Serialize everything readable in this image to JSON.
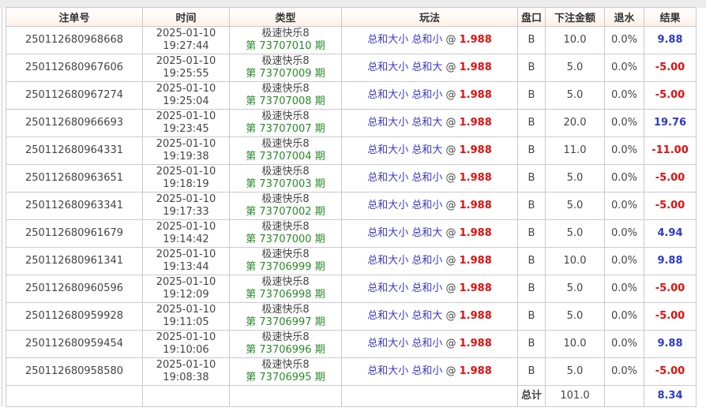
{
  "headers": [
    "注单号",
    "时间",
    "类型",
    "玩法",
    "盘口",
    "下注金额",
    "退水",
    "结果"
  ],
  "rows": [
    {
      "id": "250112680968668",
      "date": "2025-01-10",
      "time": "19:27:44",
      "game": "极速快乐8",
      "period": "第 73707010 期",
      "play": "总和大小 总和小",
      "odds": "1.988",
      "pan": "B",
      "amount": "10.0",
      "rebate": "0.0%",
      "result": "9.88"
    },
    {
      "id": "250112680967606",
      "date": "2025-01-10",
      "time": "19:25:55",
      "game": "极速快乐8",
      "period": "第 73707009 期",
      "play": "总和大小 总和大",
      "odds": "1.988",
      "pan": "B",
      "amount": "5.0",
      "rebate": "0.0%",
      "result": "-5.00"
    },
    {
      "id": "250112680967274",
      "date": "2025-01-10",
      "time": "19:25:04",
      "game": "极速快乐8",
      "period": "第 73707008 期",
      "play": "总和大小 总和小",
      "odds": "1.988",
      "pan": "B",
      "amount": "5.0",
      "rebate": "0.0%",
      "result": "-5.00"
    },
    {
      "id": "250112680966693",
      "date": "2025-01-10",
      "time": "19:23:45",
      "game": "极速快乐8",
      "period": "第 73707007 期",
      "play": "总和大小 总和大",
      "odds": "1.988",
      "pan": "B",
      "amount": "20.0",
      "rebate": "0.0%",
      "result": "19.76"
    },
    {
      "id": "250112680964331",
      "date": "2025-01-10",
      "time": "19:19:38",
      "game": "极速快乐8",
      "period": "第 73707004 期",
      "play": "总和大小 总和大",
      "odds": "1.988",
      "pan": "B",
      "amount": "11.0",
      "rebate": "0.0%",
      "result": "-11.00"
    },
    {
      "id": "250112680963651",
      "date": "2025-01-10",
      "time": "19:18:19",
      "game": "极速快乐8",
      "period": "第 73707003 期",
      "play": "总和大小 总和小",
      "odds": "1.988",
      "pan": "B",
      "amount": "5.0",
      "rebate": "0.0%",
      "result": "-5.00"
    },
    {
      "id": "250112680963341",
      "date": "2025-01-10",
      "time": "19:17:33",
      "game": "极速快乐8",
      "period": "第 73707002 期",
      "play": "总和大小 总和小",
      "odds": "1.988",
      "pan": "B",
      "amount": "5.0",
      "rebate": "0.0%",
      "result": "-5.00"
    },
    {
      "id": "250112680961679",
      "date": "2025-01-10",
      "time": "19:14:42",
      "game": "极速快乐8",
      "period": "第 73707000 期",
      "play": "总和大小 总和大",
      "odds": "1.988",
      "pan": "B",
      "amount": "5.0",
      "rebate": "0.0%",
      "result": "4.94"
    },
    {
      "id": "250112680961341",
      "date": "2025-01-10",
      "time": "19:13:44",
      "game": "极速快乐8",
      "period": "第 73706999 期",
      "play": "总和大小 总和小",
      "odds": "1.988",
      "pan": "B",
      "amount": "10.0",
      "rebate": "0.0%",
      "result": "9.88"
    },
    {
      "id": "250112680960596",
      "date": "2025-01-10",
      "time": "19:12:09",
      "game": "极速快乐8",
      "period": "第 73706998 期",
      "play": "总和大小 总和小",
      "odds": "1.988",
      "pan": "B",
      "amount": "5.0",
      "rebate": "0.0%",
      "result": "-5.00"
    },
    {
      "id": "250112680959928",
      "date": "2025-01-10",
      "time": "19:11:05",
      "game": "极速快乐8",
      "period": "第 73706997 期",
      "play": "总和大小 总和大",
      "odds": "1.988",
      "pan": "B",
      "amount": "5.0",
      "rebate": "0.0%",
      "result": "-5.00"
    },
    {
      "id": "250112680959454",
      "date": "2025-01-10",
      "time": "19:10:06",
      "game": "极速快乐8",
      "period": "第 73706996 期",
      "play": "总和大小 总和小",
      "odds": "1.988",
      "pan": "B",
      "amount": "10.0",
      "rebate": "0.0%",
      "result": "9.88"
    },
    {
      "id": "250112680958580",
      "date": "2025-01-10",
      "time": "19:08:38",
      "game": "极速快乐8",
      "period": "第 73706995 期",
      "play": "总和大小 总和小",
      "odds": "1.988",
      "pan": "B",
      "amount": "5.0",
      "rebate": "0.0%",
      "result": "-5.00"
    }
  ],
  "total": {
    "label": "总计",
    "amount": "101.0",
    "result": "8.34"
  },
  "colors": {
    "positive": "#2a3ad0",
    "negative": "#e01010",
    "period": "#2a8a2a",
    "play": "#3a3ac8"
  }
}
